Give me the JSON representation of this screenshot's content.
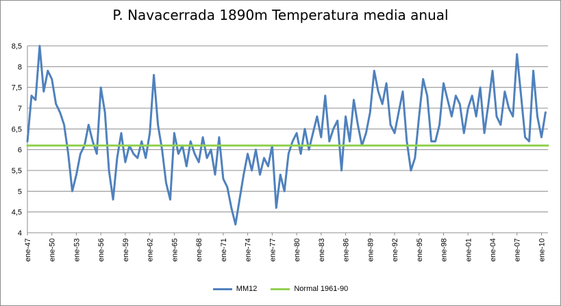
{
  "chart_data": {
    "type": "line",
    "title": "P. Navacerrada 1890m Temperatura media anual",
    "xlabel": "",
    "ylabel": "",
    "ylim": [
      4,
      8.5
    ],
    "y_ticks": [
      "4",
      "4,5",
      "5",
      "5,5",
      "6",
      "6,5",
      "7",
      "7,5",
      "8",
      "8,5"
    ],
    "x_tick_labels": [
      "ene-47",
      "ene-50",
      "ene-53",
      "ene-56",
      "ene-59",
      "ene-62",
      "ene-65",
      "ene-68",
      "ene-71",
      "ene-74",
      "ene-77",
      "ene-80",
      "ene-83",
      "ene-86",
      "ene-89",
      "ene-92",
      "ene-95",
      "ene-98",
      "ene-01",
      "ene-04",
      "ene-07",
      "ene-10"
    ],
    "grid": "horizontal",
    "legend_position": "bottom",
    "series": [
      {
        "name": "MM12",
        "color": "#4f81bd",
        "x": [
          "1947.0",
          "1947.5",
          "1948.0",
          "1948.5",
          "1949.0",
          "1949.5",
          "1950.0",
          "1950.5",
          "1951.0",
          "1951.5",
          "1952.0",
          "1952.5",
          "1953.0",
          "1953.5",
          "1954.0",
          "1954.5",
          "1955.0",
          "1955.5",
          "1956.0",
          "1956.5",
          "1957.0",
          "1957.5",
          "1958.0",
          "1958.5",
          "1959.0",
          "1959.5",
          "1960.0",
          "1960.5",
          "1961.0",
          "1961.5",
          "1962.0",
          "1962.5",
          "1963.0",
          "1963.5",
          "1964.0",
          "1964.5",
          "1965.0",
          "1965.5",
          "1966.0",
          "1966.5",
          "1967.0",
          "1967.5",
          "1968.0",
          "1968.5",
          "1969.0",
          "1969.5",
          "1970.0",
          "1970.5",
          "1971.0",
          "1971.5",
          "1972.0",
          "1972.5",
          "1973.0",
          "1973.5",
          "1974.0",
          "1974.5",
          "1975.0",
          "1975.5",
          "1976.0",
          "1976.5",
          "1977.0",
          "1977.5",
          "1978.0",
          "1978.5",
          "1979.0",
          "1979.5",
          "1980.0",
          "1980.5",
          "1981.0",
          "1981.5",
          "1982.0",
          "1982.5",
          "1983.0",
          "1983.5",
          "1984.0",
          "1984.5",
          "1985.0",
          "1985.5",
          "1986.0",
          "1986.5",
          "1987.0",
          "1987.5",
          "1988.0",
          "1988.5",
          "1989.0",
          "1989.5",
          "1990.0",
          "1990.5",
          "1991.0",
          "1991.5",
          "1992.0",
          "1992.5",
          "1993.0",
          "1993.5",
          "1994.0",
          "1994.5",
          "1995.0",
          "1995.5",
          "1996.0",
          "1996.5",
          "1997.0",
          "1997.5",
          "1998.0",
          "1998.5",
          "1999.0",
          "1999.5",
          "2000.0",
          "2000.5",
          "2001.0",
          "2001.5",
          "2002.0",
          "2002.5",
          "2003.0",
          "2003.5",
          "2004.0",
          "2004.5",
          "2005.0",
          "2005.5",
          "2006.0",
          "2006.5",
          "2007.0",
          "2007.5",
          "2008.0",
          "2008.5",
          "2009.0",
          "2009.5",
          "2010.0",
          "2010.5"
        ],
        "values": [
          6.2,
          7.3,
          7.2,
          8.5,
          7.4,
          7.9,
          7.7,
          7.1,
          6.9,
          6.6,
          5.9,
          5.0,
          5.4,
          5.9,
          6.1,
          6.6,
          6.2,
          5.9,
          7.5,
          6.9,
          5.5,
          4.8,
          5.8,
          6.4,
          5.7,
          6.1,
          5.9,
          5.8,
          6.2,
          5.8,
          6.4,
          7.8,
          6.6,
          6.0,
          5.2,
          4.8,
          6.4,
          5.9,
          6.1,
          5.6,
          6.2,
          5.9,
          5.7,
          6.3,
          5.8,
          6.0,
          5.4,
          6.3,
          5.3,
          5.1,
          4.6,
          4.2,
          4.8,
          5.4,
          5.9,
          5.5,
          6.0,
          5.4,
          5.8,
          5.6,
          6.1,
          4.6,
          5.4,
          5.0,
          5.9,
          6.2,
          6.4,
          5.9,
          6.5,
          6.0,
          6.4,
          6.8,
          6.3,
          7.3,
          6.2,
          6.5,
          6.7,
          5.5,
          6.8,
          6.2,
          7.2,
          6.6,
          6.1,
          6.4,
          6.9,
          7.9,
          7.4,
          7.1,
          7.6,
          6.6,
          6.4,
          6.9,
          7.4,
          6.2,
          5.5,
          5.8,
          6.8,
          7.7,
          7.3,
          6.2,
          6.2,
          6.6,
          7.6,
          7.2,
          6.8,
          7.3,
          7.1,
          6.4,
          7.0,
          7.3,
          6.8,
          7.5,
          6.4,
          7.1,
          7.9,
          6.8,
          6.6,
          7.4,
          7.0,
          6.8,
          8.3,
          7.3,
          6.3,
          6.2,
          7.9,
          6.8,
          6.3,
          6.9
        ]
      },
      {
        "name": "Normal 1961-90",
        "color": "#92d050",
        "x": [
          "1947.0",
          "2010.8"
        ],
        "values": [
          6.1,
          6.1
        ]
      }
    ]
  },
  "legend": {
    "items": [
      "MM12",
      "Normal 1961-90"
    ]
  }
}
